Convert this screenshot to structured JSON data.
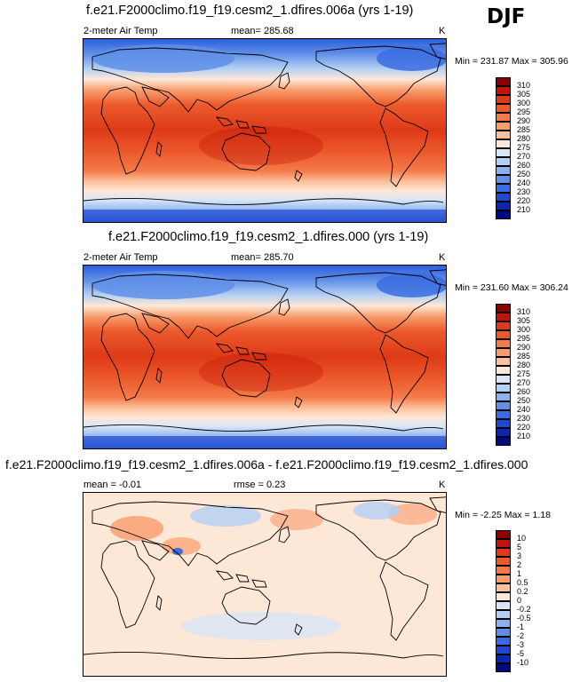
{
  "season": "DJF",
  "panels": [
    {
      "title": "f.e21.F2000climo.f19_f19.cesm2_1.dfires.006a (yrs 1-19)",
      "left_label": "2-meter Air Temp",
      "center_label": "mean= 285.68",
      "units": "K",
      "minmax": "Min = 231.87 Max = 305.96"
    },
    {
      "title": "f.e21.F2000climo.f19_f19.cesm2_1.dfires.000 (yrs 1-19)",
      "left_label": "2-meter Air Temp",
      "center_label": "mean= 285.70",
      "units": "K",
      "minmax": "Min = 231.60 Max = 306.24"
    },
    {
      "title": "f.e21.F2000climo.f19_f19.cesm2_1.dfires.006a - f.e21.F2000climo.f19_f19.cesm2_1.dfires.000",
      "left_label": "mean =  -0.01",
      "center_label": "rmse =  0.23",
      "units": "K",
      "minmax": "Min =  -2.25 Max =   1.18"
    }
  ],
  "colorbars": {
    "absolute": {
      "labels": [
        "310",
        "305",
        "300",
        "295",
        "290",
        "285",
        "280",
        "275",
        "270",
        "260",
        "250",
        "240",
        "230",
        "220",
        "210"
      ],
      "colors": [
        "#8b0000",
        "#c2140a",
        "#de3a17",
        "#ec5a2c",
        "#f47a48",
        "#f99c6c",
        "#fcc19c",
        "#fde7d6",
        "#d8e6f8",
        "#b3cff4",
        "#8bb1ee",
        "#5f8fe8",
        "#3a6ce1",
        "#1f48cf",
        "#0c26b4",
        "#000a80"
      ]
    },
    "difference": {
      "labels": [
        "10",
        "5",
        "3",
        "2",
        "1",
        "0.5",
        "0.2",
        "0",
        "-0.2",
        "-0.5",
        "-1",
        "-2",
        "-3",
        "-5",
        "-10"
      ],
      "colors": [
        "#8b0000",
        "#c2140a",
        "#de3a17",
        "#ec5a2c",
        "#f47a48",
        "#f99c6c",
        "#fcc19c",
        "#fde7d6",
        "#d8e6f8",
        "#b3cff4",
        "#8bb1ee",
        "#5f8fe8",
        "#3a6ce1",
        "#1f48cf",
        "#0c26b4",
        "#000a80"
      ]
    }
  },
  "chart_data": [
    {
      "type": "heatmap",
      "title": "f.e21.F2000climo.f19_f19.cesm2_1.dfires.006a (yrs 1-19)",
      "variable": "2-meter Air Temp",
      "units": "K",
      "mean": 285.68,
      "min": 231.87,
      "max": 305.96,
      "levels": [
        210,
        220,
        230,
        240,
        250,
        260,
        270,
        275,
        280,
        285,
        290,
        295,
        300,
        305,
        310
      ],
      "projection": "global cylindrical, Pacific-centered"
    },
    {
      "type": "heatmap",
      "title": "f.e21.F2000climo.f19_f19.cesm2_1.dfires.000 (yrs 1-19)",
      "variable": "2-meter Air Temp",
      "units": "K",
      "mean": 285.7,
      "min": 231.6,
      "max": 306.24,
      "levels": [
        210,
        220,
        230,
        240,
        250,
        260,
        270,
        275,
        280,
        285,
        290,
        295,
        300,
        305,
        310
      ],
      "projection": "global cylindrical, Pacific-centered"
    },
    {
      "type": "heatmap",
      "title": "f.e21.F2000climo.f19_f19.cesm2_1.dfires.006a - f.e21.F2000climo.f19_f19.cesm2_1.dfires.000",
      "units": "K",
      "mean": -0.01,
      "rmse": 0.23,
      "min": -2.25,
      "max": 1.18,
      "levels": [
        -10,
        -5,
        -3,
        -2,
        -1,
        -0.5,
        -0.2,
        0,
        0.2,
        0.5,
        1,
        2,
        3,
        5,
        10
      ],
      "projection": "global cylindrical, Pacific-centered"
    }
  ]
}
